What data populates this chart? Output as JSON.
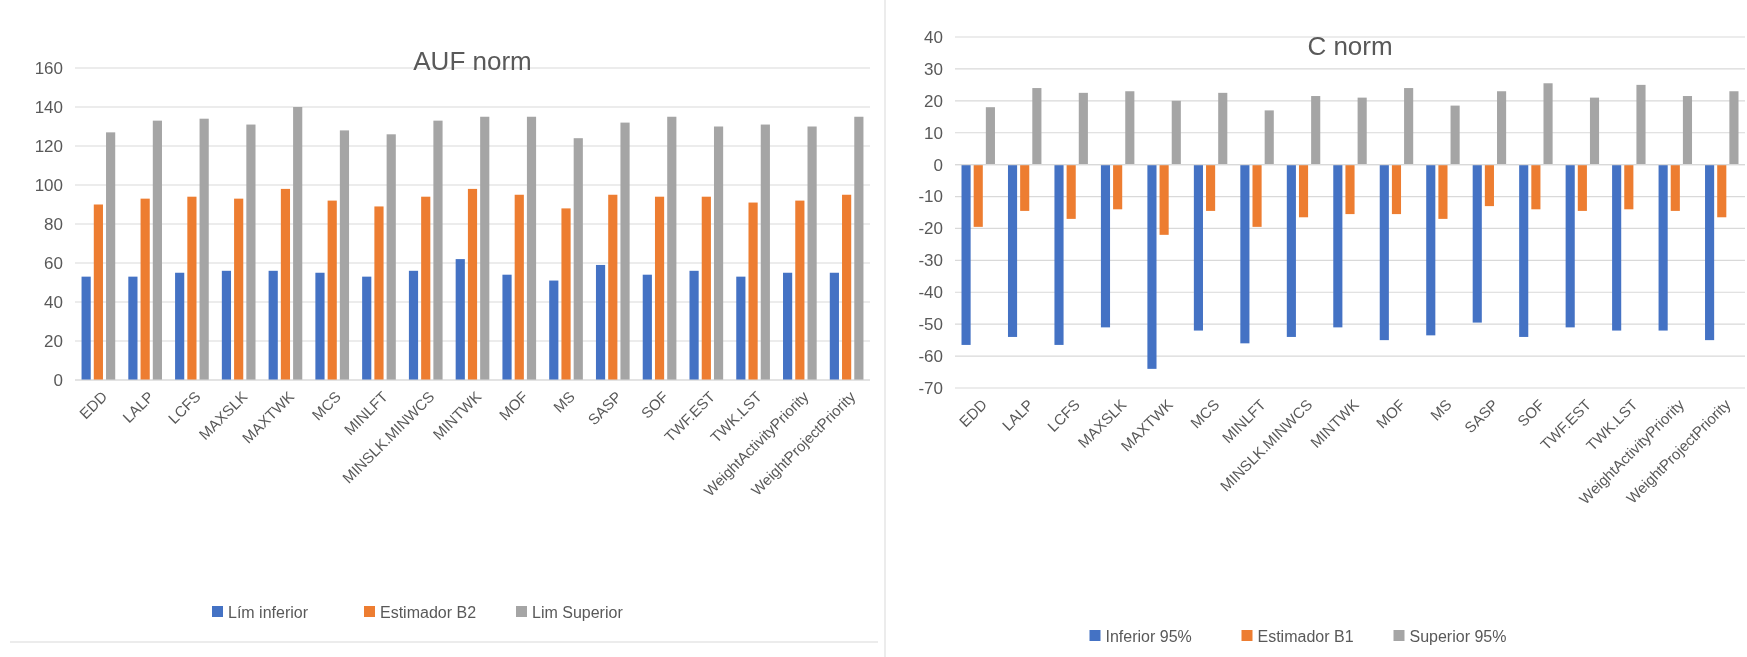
{
  "chart_data": [
    {
      "type": "bar",
      "title": "AUF norm",
      "categories": [
        "EDD",
        "LALP",
        "LCFS",
        "MAXSLK",
        "MAXTWK",
        "MCS",
        "MINLFT",
        "MINSLK.MINWCS",
        "MINTWK",
        "MOF",
        "MS",
        "SASP",
        "SOF",
        "TWF.EST",
        "TWK.LST",
        "WeightActivityPriority",
        "WeightProjectPriority"
      ],
      "series": [
        {
          "name": "Lím inferior",
          "color": "#4472c4",
          "values": [
            53,
            53,
            55,
            56,
            56,
            55,
            53,
            56,
            62,
            54,
            51,
            59,
            54,
            56,
            53,
            55,
            55
          ]
        },
        {
          "name": "Estimador B2",
          "color": "#ed7d31",
          "values": [
            90,
            93,
            94,
            93,
            98,
            92,
            89,
            94,
            98,
            95,
            88,
            95,
            94,
            94,
            91,
            92,
            95
          ]
        },
        {
          "name": "Lim Superior",
          "color": "#a5a5a5",
          "values": [
            127,
            133,
            134,
            131,
            140,
            128,
            126,
            133,
            135,
            135,
            124,
            132,
            135,
            130,
            131,
            130,
            135
          ]
        }
      ],
      "ylim": [
        0,
        160
      ],
      "yticks": [
        0,
        20,
        40,
        60,
        80,
        100,
        120,
        140,
        160
      ],
      "grid": "y",
      "legend": "bottom"
    },
    {
      "type": "bar",
      "title": "C norm",
      "categories": [
        "EDD",
        "LALP",
        "LCFS",
        "MAXSLK",
        "MAXTWK",
        "MCS",
        "MINLFT",
        "MINSLK.MINWCS",
        "MINTWK",
        "MOF",
        "MS",
        "SASP",
        "SOF",
        "TWF.EST",
        "TWK.LST",
        "WeightActivityPriority",
        "WeightProjectPriority"
      ],
      "series": [
        {
          "name": "Inferior 95%",
          "color": "#4472c4",
          "values": [
            -56.5,
            -54,
            -56.5,
            -51,
            -64,
            -52,
            -56,
            -54,
            -51,
            -55,
            -53.5,
            -49.5,
            -54,
            -51,
            -52,
            -52,
            -55
          ]
        },
        {
          "name": "Estimador B1",
          "color": "#ed7d31",
          "values": [
            -19.5,
            -14.5,
            -17,
            -14,
            -22,
            -14.5,
            -19.5,
            -16.5,
            -15.5,
            -15.5,
            -17,
            -13,
            -14,
            -14.5,
            -14,
            -14.5,
            -16.5
          ]
        },
        {
          "name": "Superior 95%",
          "color": "#a5a5a5",
          "values": [
            18,
            24,
            22.5,
            23,
            20,
            22.5,
            17,
            21.5,
            21,
            24,
            18.5,
            23,
            25.5,
            21,
            25,
            21.5,
            23
          ]
        }
      ],
      "ylim": [
        -70,
        40
      ],
      "yticks": [
        -70,
        -60,
        -50,
        -40,
        -30,
        -20,
        -10,
        0,
        10,
        20,
        30,
        40
      ],
      "grid": "y",
      "legend": "bottom"
    }
  ]
}
